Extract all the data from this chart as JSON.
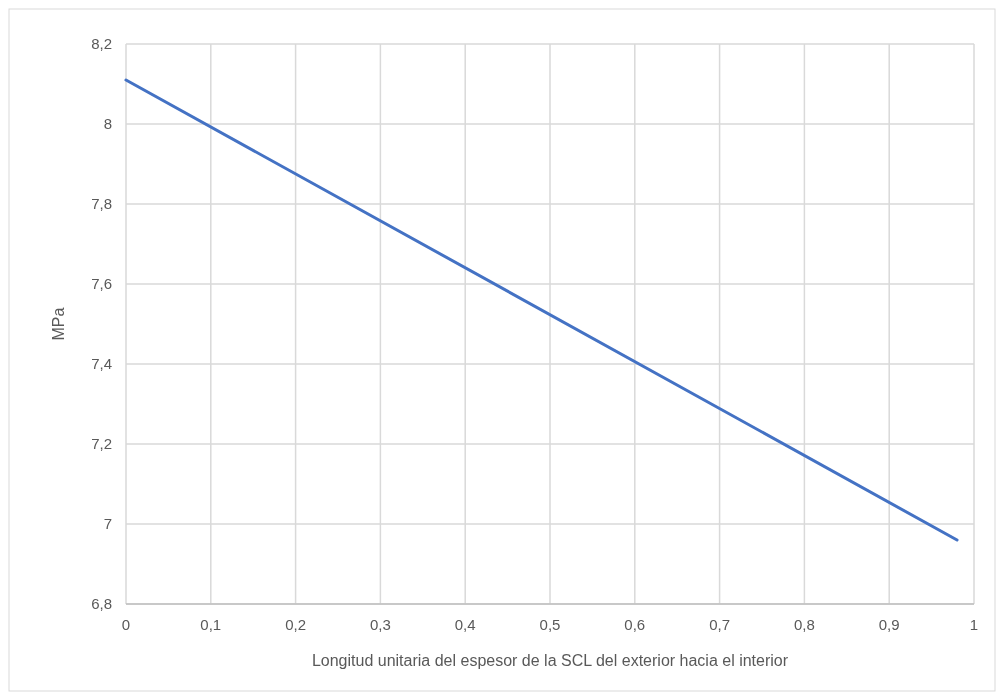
{
  "chart_data": {
    "type": "line",
    "xlabel": "Longitud unitaria del espesor de la SCL del exterior hacia el interior",
    "ylabel": "MPa",
    "x": [
      0,
      0.98
    ],
    "series": [
      {
        "color": "#4472c4",
        "values": [
          8.11,
          6.96
        ]
      }
    ],
    "xlim": [
      0,
      1
    ],
    "ylim": [
      6.8,
      8.2
    ],
    "xticks": [
      0,
      {
        "value": 0.1,
        "label": "0,1"
      },
      {
        "value": 0.2,
        "label": "0,2"
      },
      {
        "value": 0.3,
        "label": "0,3"
      },
      {
        "value": 0.4,
        "label": "0,4"
      },
      {
        "value": 0.5,
        "label": "0,5"
      },
      {
        "value": 0.6,
        "label": "0,6"
      },
      {
        "value": 0.7,
        "label": "0,7"
      },
      {
        "value": 0.8,
        "label": "0,8"
      },
      {
        "value": 0.9,
        "label": "0,9"
      },
      1
    ],
    "yticks": [
      {
        "value": 6.8,
        "label": "6,8"
      },
      7,
      {
        "value": 7.2,
        "label": "7,2"
      },
      {
        "value": 7.4,
        "label": "7,4"
      },
      {
        "value": 7.6,
        "label": "7,6"
      },
      {
        "value": 7.8,
        "label": "7,8"
      },
      8,
      {
        "value": 8.2,
        "label": "8,2"
      }
    ],
    "grid": true,
    "marker": "none",
    "line_style": "solid"
  }
}
